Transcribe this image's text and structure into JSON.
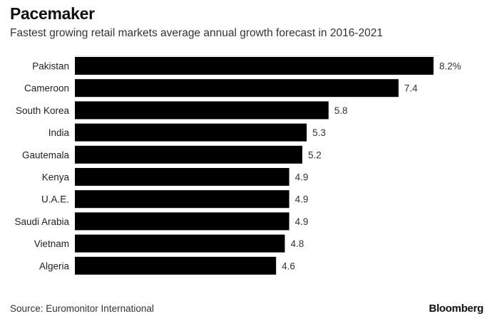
{
  "chart_data": {
    "type": "bar",
    "orientation": "horizontal",
    "title": "Pacemaker",
    "subtitle": "Fastest growing retail markets average annual growth forecast in 2016-2021",
    "categories": [
      "Pakistan",
      "Cameroon",
      "South Korea",
      "India",
      "Gautemala",
      "Kenya",
      "U.A.E.",
      "Saudi Arabia",
      "Vietnam",
      "Algeria"
    ],
    "values": [
      8.2,
      7.4,
      5.8,
      5.3,
      5.2,
      4.9,
      4.9,
      4.9,
      4.8,
      4.6
    ],
    "value_labels": [
      "8.2%",
      "7.4",
      "5.8",
      "5.3",
      "5.2",
      "4.9",
      "4.9",
      "4.9",
      "4.8",
      "4.6"
    ],
    "unit": "%",
    "xlabel": "",
    "ylabel": "",
    "xlim": [
      0,
      8.2
    ],
    "grid": false,
    "bar_color": "#000000",
    "source": "Source: Euromonitor International",
    "brand": "Bloomberg"
  }
}
